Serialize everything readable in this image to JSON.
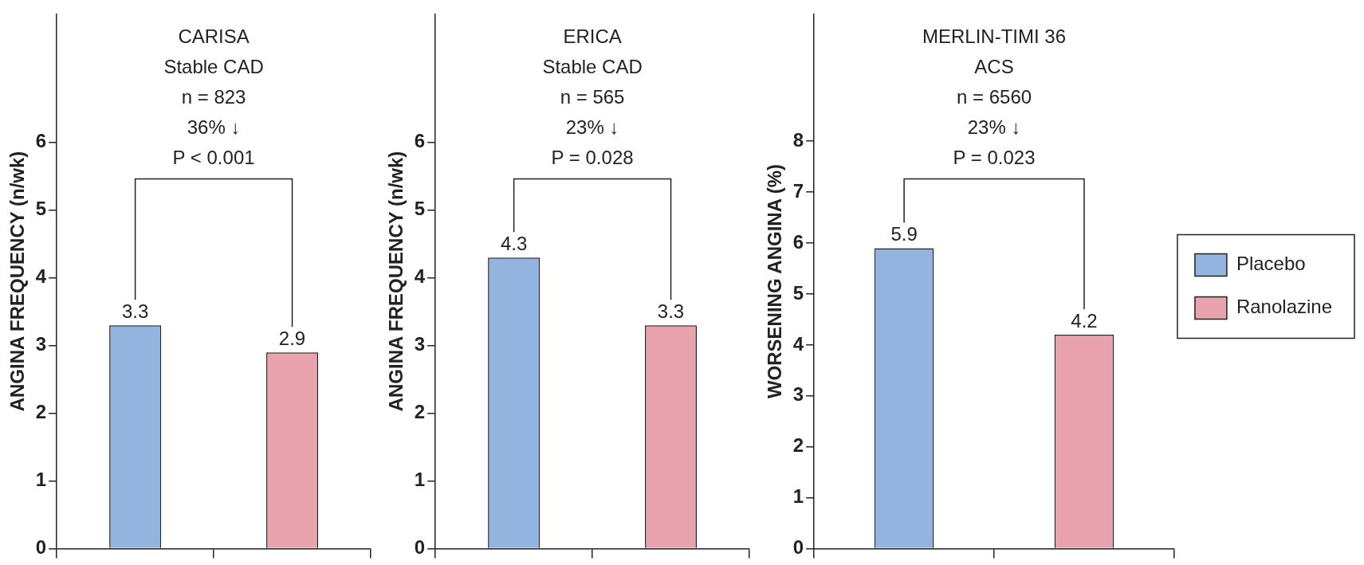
{
  "chart_data": [
    {
      "type": "bar",
      "title": "CARISA",
      "subtitle": "Stable CAD",
      "ylabel": "ANGINA FREQUENCY (n/wk)",
      "categories": [
        null,
        null
      ],
      "series": [
        {
          "color": "#94b4e0",
          "values": [
            3.3,
            null
          ]
        },
        {
          "color": "#e8a3ae",
          "values": [
            null,
            2.9
          ]
        }
      ],
      "ylim": [
        0,
        7.9
      ],
      "yticks": [
        0,
        1,
        2,
        3,
        4,
        5,
        6
      ],
      "grid": false,
      "data_labels": true,
      "annotations": [
        "n = 823",
        "36% ↓",
        "P < 0.001"
      ]
    },
    {
      "type": "bar",
      "title": "ERICA",
      "subtitle": "Stable CAD",
      "ylabel": "ANGINA FREQUENCY (n/wk)",
      "categories": [
        null,
        null
      ],
      "series": [
        {
          "color": "#94b4e0",
          "values": [
            4.3,
            null
          ]
        },
        {
          "color": "#e8a3ae",
          "values": [
            null,
            3.3
          ]
        }
      ],
      "ylim": [
        0,
        7.9
      ],
      "yticks": [
        0,
        1,
        2,
        3,
        4,
        5,
        6
      ],
      "grid": false,
      "data_labels": true,
      "annotations": [
        "n = 565",
        "23% ↓",
        "P = 0.028"
      ]
    },
    {
      "type": "bar",
      "title": "MERLIN-TIMI 36",
      "subtitle": "ACS",
      "ylabel": "WORSENING ANGINA (%)",
      "categories": [
        null,
        null
      ],
      "series": [
        {
          "name": "Placebo",
          "color": "#94b4e0",
          "values": [
            5.9,
            null
          ]
        },
        {
          "name": "Ranolazine",
          "color": "#e8a3ae",
          "values": [
            null,
            4.2
          ]
        }
      ],
      "ylim": [
        0,
        10.5
      ],
      "yticks": [
        0,
        1,
        2,
        3,
        4,
        5,
        6,
        7,
        8
      ],
      "grid": false,
      "data_labels": true,
      "legend": "right",
      "annotations": [
        "n = 6560",
        "23% ↓",
        "P = 0.023"
      ]
    }
  ]
}
